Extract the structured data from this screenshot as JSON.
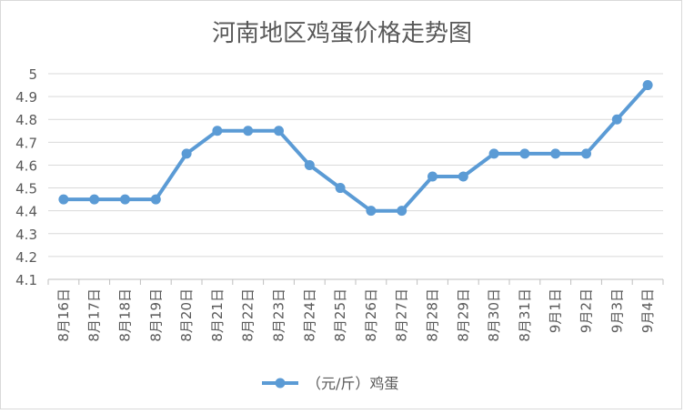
{
  "chart_data": {
    "type": "line",
    "title": "河南地区鸡蛋价格走势图",
    "xlabel": "",
    "ylabel": "",
    "ylim": [
      4.1,
      5
    ],
    "yticks": [
      "4.1",
      "4.2",
      "4.3",
      "4.4",
      "4.5",
      "4.6",
      "4.7",
      "4.8",
      "4.9",
      "5"
    ],
    "grid": true,
    "legend_position": "bottom",
    "categories": [
      "8月16日",
      "8月17日",
      "8月18日",
      "8月19日",
      "8月20日",
      "8月21日",
      "8月22日",
      "8月23日",
      "8月24日",
      "8月25日",
      "8月26日",
      "8月27日",
      "8月28日",
      "8月29日",
      "8月30日",
      "8月31日",
      "9月1日",
      "9月2日",
      "9月3日",
      "9月4日"
    ],
    "series": [
      {
        "name": "（元/斤）鸡蛋",
        "color": "#5b9bd5",
        "values": [
          4.45,
          4.45,
          4.45,
          4.45,
          4.65,
          4.75,
          4.75,
          4.75,
          4.6,
          4.5,
          4.4,
          4.4,
          4.55,
          4.55,
          4.65,
          4.65,
          4.65,
          4.65,
          4.8,
          4.95
        ]
      }
    ]
  }
}
